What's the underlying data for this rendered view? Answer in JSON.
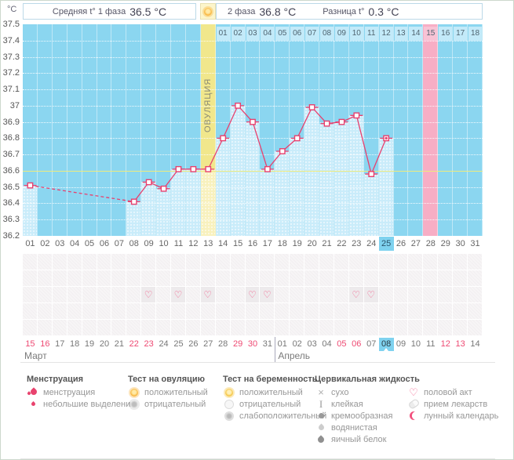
{
  "header": {
    "unit": "°C",
    "phase1_label": "Средняя t° 1 фаза",
    "phase1_value": "36.5 °C",
    "phase2_label": "2 фаза",
    "phase2_value": "36.8 °C",
    "diff_label": "Разница t°",
    "diff_value": "0.3 °C"
  },
  "chart_data": {
    "type": "line",
    "ylabel": "°C",
    "ylim": [
      36.2,
      37.5
    ],
    "ytick_labels": [
      "37.5",
      "37.4",
      "37.3",
      "37.2",
      "37.1",
      "37",
      "36.9",
      "36.8",
      "36.7",
      "36.6",
      "36.5",
      "36.4",
      "36.3",
      "36.2"
    ],
    "grid": true,
    "cycle_days": [
      "01",
      "02",
      "03",
      "04",
      "05",
      "06",
      "07",
      "08",
      "09",
      "10",
      "11",
      "12",
      "13",
      "14",
      "15",
      "16",
      "17",
      "18",
      "19",
      "20",
      "21",
      "22",
      "23",
      "24",
      "25",
      "26",
      "27",
      "28",
      "29",
      "30",
      "31"
    ],
    "series": [
      {
        "name": "базальная температура",
        "points": [
          {
            "day": 1,
            "temp": 36.51
          },
          {
            "day": 8,
            "temp": 36.41
          },
          {
            "day": 9,
            "temp": 36.53
          },
          {
            "day": 10,
            "temp": 36.49
          },
          {
            "day": 11,
            "temp": 36.61
          },
          {
            "day": 12,
            "temp": 36.61
          },
          {
            "day": 13,
            "temp": 36.61
          },
          {
            "day": 14,
            "temp": 36.8
          },
          {
            "day": 15,
            "temp": 37.0
          },
          {
            "day": 16,
            "temp": 36.9
          },
          {
            "day": 17,
            "temp": 36.61
          },
          {
            "day": 18,
            "temp": 36.72
          },
          {
            "day": 19,
            "temp": 36.8
          },
          {
            "day": 20,
            "temp": 36.99
          },
          {
            "day": 21,
            "temp": 36.89
          },
          {
            "day": 22,
            "temp": 36.9
          },
          {
            "day": 23,
            "temp": 36.94
          },
          {
            "day": 24,
            "temp": 36.58
          },
          {
            "day": 25,
            "temp": 36.8
          }
        ]
      }
    ],
    "dashed_segment_days": [
      1,
      8
    ],
    "coverline_temp": 36.6,
    "ovulation_day": 13,
    "ovulation_label": "ОВУЛЯЦИЯ",
    "expected_period_day": 28,
    "today_cycle_day": 25,
    "dpo_row": {
      "start_day": 14,
      "labels": [
        "01",
        "02",
        "03",
        "04",
        "05",
        "06",
        "07",
        "08",
        "09",
        "10",
        "11",
        "12",
        "13",
        "14",
        "15",
        "16",
        "17",
        "18"
      ],
      "highlighted": "15"
    },
    "intercourse_days": [
      9,
      11,
      13,
      16,
      17,
      23,
      24
    ],
    "symbol_grid_rows": 5,
    "intercourse_row_index": 3
  },
  "calendar": {
    "months": [
      {
        "name": "Март",
        "dates": [
          "15",
          "16",
          "17",
          "18",
          "19",
          "20",
          "21",
          "22",
          "23",
          "24",
          "25",
          "26",
          "27",
          "28",
          "29",
          "30",
          "31"
        ],
        "weekend_dates": [
          "15",
          "16",
          "22",
          "23",
          "29",
          "30"
        ]
      },
      {
        "name": "Апрель",
        "dates": [
          "01",
          "02",
          "03",
          "04",
          "05",
          "06",
          "07",
          "08",
          "09",
          "10",
          "11",
          "12",
          "13",
          "14"
        ],
        "weekend_dates": [
          "05",
          "06",
          "12",
          "13"
        ],
        "today_date": "08"
      }
    ]
  },
  "legend": {
    "groups": [
      {
        "title": "Менструация",
        "items": [
          {
            "icon": "menses-drops-icon",
            "label": "менструация"
          },
          {
            "icon": "spotting-drop-icon",
            "label": "небольшие выделения"
          }
        ]
      },
      {
        "title": "Тест на овуляцию",
        "items": [
          {
            "icon": "ovulation-test-positive-icon",
            "label": "положительный"
          },
          {
            "icon": "ovulation-test-negative-icon",
            "label": "отрицательный"
          }
        ]
      },
      {
        "title": "Тест на беременность",
        "items": [
          {
            "icon": "pregnancy-test-positive-icon",
            "label": "положительный"
          },
          {
            "icon": "pregnancy-test-negative-icon",
            "label": "отрицательный"
          },
          {
            "icon": "pregnancy-test-weak-icon",
            "label": "слабоположительный"
          }
        ]
      },
      {
        "title": "Цервикальная жидкость",
        "items": [
          {
            "icon": "dry-icon",
            "label": "сухо"
          },
          {
            "icon": "sticky-icon",
            "label": "клейкая"
          },
          {
            "icon": "creamy-icon",
            "label": "кремообразная"
          },
          {
            "icon": "watery-icon",
            "label": "водянистая"
          },
          {
            "icon": "eggwhite-icon",
            "label": "яичный белок"
          }
        ]
      },
      {
        "title": "",
        "items": [
          {
            "icon": "intercourse-heart-icon",
            "label": "половой акт"
          },
          {
            "icon": "medication-pill-icon",
            "label": "прием лекарств"
          },
          {
            "icon": "lunar-calendar-icon",
            "label": "лунный календарь"
          }
        ]
      }
    ]
  },
  "colors": {
    "line": "#e8406e",
    "column_no_data": "#8bd6f0",
    "column_data": "#c9ecfa",
    "ovulation_column": "#f1e78c",
    "expected_period_column": "#f7aec5",
    "coverline": "#eeeb7d",
    "today_highlight": "#7fd2ef",
    "weekend_date": "#ee4a73",
    "positive_test": "#f6a61f"
  }
}
